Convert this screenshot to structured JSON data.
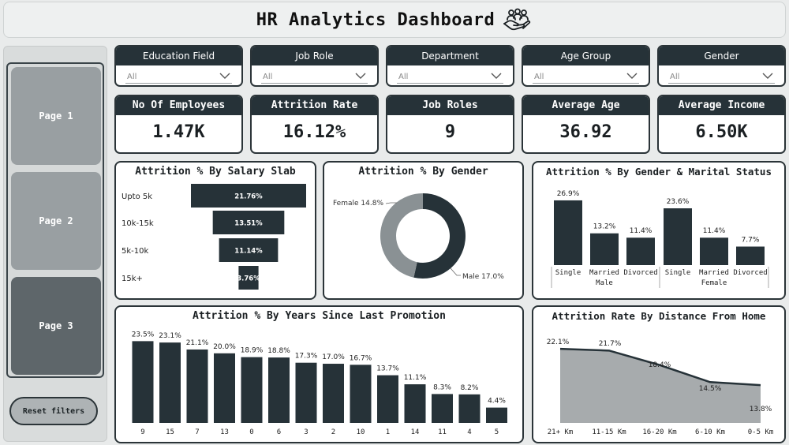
{
  "header": {
    "title": "HR Analytics Dashboard",
    "icon": "handshake-people-icon"
  },
  "sidebar": {
    "pages": [
      {
        "label": "Page 1",
        "active": false
      },
      {
        "label": "Page 2",
        "active": false
      },
      {
        "label": "Page 3",
        "active": true
      }
    ],
    "reset_label": "Reset filters"
  },
  "filters": [
    {
      "label": "Education Field",
      "value": "All"
    },
    {
      "label": "Job Role",
      "value": "All"
    },
    {
      "label": "Department",
      "value": "All"
    },
    {
      "label": "Age Group",
      "value": "All"
    },
    {
      "label": "Gender",
      "value": "All"
    }
  ],
  "kpis": [
    {
      "label": "No Of Employees",
      "value": "1.47K"
    },
    {
      "label": "Attrition Rate",
      "value": "16.12%"
    },
    {
      "label": "Job Roles",
      "value": "9"
    },
    {
      "label": "Average Age",
      "value": "36.92"
    },
    {
      "label": "Average Income",
      "value": "6.50K"
    }
  ],
  "colors": {
    "dark": "#263238",
    "grey": "#8a9194",
    "area": "#a7abad"
  },
  "chart_data": [
    {
      "id": "salary",
      "type": "bar",
      "orientation": "funnel",
      "title": "Attrition % By Salary Slab",
      "categories": [
        "Upto 5k",
        "10k-15k",
        "5k-10k",
        "15k+"
      ],
      "values": [
        21.76,
        13.51,
        11.14,
        3.76
      ],
      "labels": [
        "21.76%",
        "13.51%",
        "11.14%",
        "3.76%"
      ]
    },
    {
      "id": "gender",
      "type": "pie",
      "donut": true,
      "title": "Attrition % By Gender",
      "categories": [
        "Male",
        "Female"
      ],
      "values": [
        17.0,
        14.8
      ],
      "labels": [
        "Male 17.0%",
        "Female 14.8%"
      ]
    },
    {
      "id": "marital",
      "type": "bar",
      "title": "Attrition % By Gender & Marital Status",
      "categories": [
        "Single",
        "Married",
        "Divorced",
        "Single",
        "Married",
        "Divorced"
      ],
      "groups": [
        "Male",
        "Female"
      ],
      "values": [
        26.9,
        13.2,
        11.4,
        23.6,
        11.4,
        7.7
      ],
      "labels": [
        "26.9%",
        "13.2%",
        "11.4%",
        "23.6%",
        "11.4%",
        "7.7%"
      ]
    },
    {
      "id": "promotion",
      "type": "bar",
      "title": "Attrition % By Years Since Last Promotion",
      "categories": [
        "9",
        "15",
        "7",
        "13",
        "0",
        "6",
        "3",
        "2",
        "10",
        "1",
        "14",
        "11",
        "4",
        "5"
      ],
      "values": [
        23.5,
        23.1,
        21.1,
        20.0,
        18.9,
        18.8,
        17.3,
        17.0,
        16.7,
        13.7,
        11.1,
        8.3,
        8.2,
        4.4
      ],
      "labels": [
        "23.5%",
        "23.1%",
        "21.1%",
        "20.0%",
        "18.9%",
        "18.8%",
        "17.3%",
        "17.0%",
        "16.7%",
        "13.7%",
        "11.1%",
        "8.3%",
        "8.2%",
        "4.4%"
      ]
    },
    {
      "id": "distance",
      "type": "area",
      "title": "Attrition Rate By Distance From Home",
      "categories": [
        "21+ Km",
        "11-15 Km",
        "16-20 Km",
        "6-10 Km",
        "0-5 Km"
      ],
      "values": [
        22.1,
        21.7,
        18.4,
        14.5,
        13.8
      ],
      "labels": [
        "22.1%",
        "21.7%",
        "18.4%",
        "14.5%",
        "13.8%"
      ]
    }
  ]
}
